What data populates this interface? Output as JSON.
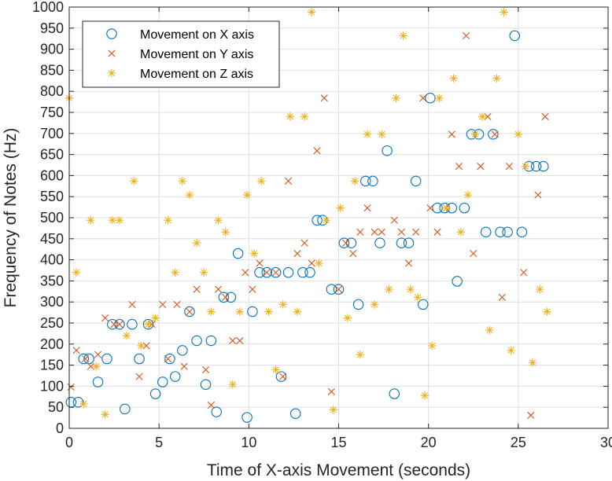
{
  "chart_data": {
    "type": "scatter",
    "title": "",
    "xlabel": "Time of X-axis Movement (seconds)",
    "ylabel": "Frequency of Notes (Hz)",
    "xlim": [
      0,
      30
    ],
    "ylim": [
      0,
      1000
    ],
    "xticks": [
      0,
      5,
      10,
      15,
      20,
      25,
      30
    ],
    "yticks": [
      0,
      50,
      100,
      150,
      200,
      250,
      300,
      350,
      400,
      450,
      500,
      550,
      600,
      650,
      700,
      750,
      800,
      850,
      900,
      950,
      1000
    ],
    "grid": true,
    "legend_position": "top-left",
    "series": [
      {
        "name": "Movement on X axis",
        "marker": "circle",
        "color": "#0072BD",
        "points": [
          [
            0.1,
            62
          ],
          [
            0.5,
            62
          ],
          [
            0.8,
            165
          ],
          [
            1.1,
            165
          ],
          [
            1.6,
            110
          ],
          [
            2.1,
            165
          ],
          [
            2.4,
            247
          ],
          [
            2.8,
            247
          ],
          [
            3.1,
            46
          ],
          [
            3.5,
            247
          ],
          [
            3.9,
            165
          ],
          [
            4.4,
            247
          ],
          [
            4.8,
            82
          ],
          [
            5.2,
            110
          ],
          [
            5.6,
            165
          ],
          [
            5.9,
            123
          ],
          [
            6.3,
            185
          ],
          [
            6.7,
            277
          ],
          [
            7.1,
            208
          ],
          [
            7.6,
            104
          ],
          [
            7.9,
            208
          ],
          [
            8.2,
            39
          ],
          [
            8.6,
            311
          ],
          [
            9.0,
            311
          ],
          [
            9.4,
            415
          ],
          [
            9.9,
            26
          ],
          [
            10.2,
            277
          ],
          [
            10.6,
            370
          ],
          [
            11.0,
            370
          ],
          [
            11.5,
            370
          ],
          [
            11.8,
            123
          ],
          [
            12.2,
            370
          ],
          [
            12.6,
            35
          ],
          [
            13.0,
            370
          ],
          [
            13.4,
            370
          ],
          [
            13.8,
            494
          ],
          [
            14.1,
            494
          ],
          [
            14.6,
            330
          ],
          [
            15.0,
            330
          ],
          [
            15.3,
            440
          ],
          [
            15.7,
            440
          ],
          [
            16.1,
            294
          ],
          [
            16.5,
            587
          ],
          [
            16.9,
            587
          ],
          [
            17.3,
            440
          ],
          [
            17.7,
            659
          ],
          [
            18.1,
            82
          ],
          [
            18.5,
            440
          ],
          [
            18.9,
            440
          ],
          [
            19.3,
            587
          ],
          [
            19.7,
            294
          ],
          [
            20.1,
            784
          ],
          [
            20.5,
            523
          ],
          [
            20.9,
            523
          ],
          [
            21.3,
            523
          ],
          [
            21.6,
            349
          ],
          [
            22.0,
            523
          ],
          [
            22.4,
            698
          ],
          [
            22.8,
            698
          ],
          [
            23.2,
            466
          ],
          [
            23.6,
            698
          ],
          [
            24.0,
            466
          ],
          [
            24.4,
            466
          ],
          [
            24.8,
            932
          ],
          [
            25.2,
            466
          ],
          [
            25.6,
            622
          ],
          [
            26.0,
            622
          ],
          [
            26.4,
            622
          ]
        ]
      },
      {
        "name": "Movement on Y axis",
        "marker": "x",
        "color": "#D95319",
        "points": [
          [
            0.1,
            98
          ],
          [
            0.4,
            185
          ],
          [
            0.9,
            165
          ],
          [
            1.2,
            147
          ],
          [
            1.6,
            175
          ],
          [
            2.0,
            262
          ],
          [
            2.5,
            247
          ],
          [
            2.8,
            247
          ],
          [
            3.5,
            294
          ],
          [
            3.9,
            123
          ],
          [
            4.3,
            196
          ],
          [
            4.6,
            247
          ],
          [
            5.2,
            294
          ],
          [
            5.5,
            165
          ],
          [
            6.0,
            294
          ],
          [
            6.4,
            147
          ],
          [
            6.7,
            277
          ],
          [
            7.1,
            330
          ],
          [
            7.6,
            139
          ],
          [
            7.9,
            55
          ],
          [
            8.3,
            330
          ],
          [
            8.7,
            311
          ],
          [
            9.1,
            208
          ],
          [
            9.5,
            208
          ],
          [
            9.8,
            370
          ],
          [
            10.2,
            330
          ],
          [
            10.6,
            392
          ],
          [
            11.0,
            370
          ],
          [
            11.5,
            370
          ],
          [
            11.9,
            123
          ],
          [
            12.2,
            587
          ],
          [
            12.7,
            415
          ],
          [
            13.1,
            440
          ],
          [
            13.5,
            392
          ],
          [
            13.8,
            659
          ],
          [
            14.2,
            784
          ],
          [
            14.6,
            87
          ],
          [
            15.0,
            330
          ],
          [
            15.4,
            440
          ],
          [
            15.8,
            415
          ],
          [
            16.2,
            466
          ],
          [
            16.6,
            523
          ],
          [
            17.0,
            466
          ],
          [
            17.4,
            466
          ],
          [
            18.1,
            494
          ],
          [
            18.5,
            466
          ],
          [
            18.9,
            392
          ],
          [
            19.3,
            466
          ],
          [
            19.7,
            784
          ],
          [
            20.1,
            523
          ],
          [
            20.5,
            466
          ],
          [
            21.0,
            523
          ],
          [
            21.3,
            698
          ],
          [
            21.7,
            622
          ],
          [
            22.1,
            932
          ],
          [
            22.5,
            415
          ],
          [
            22.9,
            622
          ],
          [
            23.3,
            740
          ],
          [
            23.7,
            698
          ],
          [
            24.1,
            311
          ],
          [
            24.5,
            622
          ],
          [
            25.3,
            370
          ],
          [
            25.7,
            31
          ],
          [
            26.1,
            554
          ],
          [
            26.5,
            740
          ]
        ]
      },
      {
        "name": "Movement on Z axis",
        "marker": "asterisk",
        "color": "#EDB120",
        "points": [
          [
            0.0,
            784
          ],
          [
            0.4,
            370
          ],
          [
            0.8,
            58
          ],
          [
            1.2,
            494
          ],
          [
            1.5,
            147
          ],
          [
            2.0,
            33
          ],
          [
            2.4,
            494
          ],
          [
            2.8,
            494
          ],
          [
            3.2,
            220
          ],
          [
            3.6,
            587
          ],
          [
            4.0,
            196
          ],
          [
            4.4,
            247
          ],
          [
            4.8,
            262
          ],
          [
            5.5,
            494
          ],
          [
            5.9,
            370
          ],
          [
            6.3,
            587
          ],
          [
            6.7,
            554
          ],
          [
            7.1,
            440
          ],
          [
            7.5,
            370
          ],
          [
            7.9,
            277
          ],
          [
            8.3,
            494
          ],
          [
            8.7,
            466
          ],
          [
            9.1,
            104
          ],
          [
            9.5,
            277
          ],
          [
            9.9,
            554
          ],
          [
            10.3,
            415
          ],
          [
            10.7,
            587
          ],
          [
            11.1,
            277
          ],
          [
            11.5,
            139
          ],
          [
            11.9,
            294
          ],
          [
            12.3,
            740
          ],
          [
            12.7,
            277
          ],
          [
            13.1,
            740
          ],
          [
            13.5,
            988
          ],
          [
            13.9,
            392
          ],
          [
            14.3,
            494
          ],
          [
            14.7,
            44
          ],
          [
            15.1,
            523
          ],
          [
            15.5,
            262
          ],
          [
            15.9,
            587
          ],
          [
            16.2,
            175
          ],
          [
            16.6,
            698
          ],
          [
            17.0,
            294
          ],
          [
            17.4,
            698
          ],
          [
            17.8,
            330
          ],
          [
            18.2,
            784
          ],
          [
            18.6,
            932
          ],
          [
            19.0,
            330
          ],
          [
            19.4,
            311
          ],
          [
            19.8,
            78
          ],
          [
            20.2,
            196
          ],
          [
            20.6,
            784
          ],
          [
            21.0,
            523
          ],
          [
            21.4,
            831
          ],
          [
            21.8,
            466
          ],
          [
            22.2,
            554
          ],
          [
            22.6,
            698
          ],
          [
            23.0,
            740
          ],
          [
            23.4,
            233
          ],
          [
            23.8,
            831
          ],
          [
            24.2,
            988
          ],
          [
            24.6,
            185
          ],
          [
            25.0,
            698
          ],
          [
            25.4,
            622
          ],
          [
            25.8,
            156
          ],
          [
            26.2,
            330
          ],
          [
            26.6,
            277
          ]
        ]
      }
    ]
  }
}
